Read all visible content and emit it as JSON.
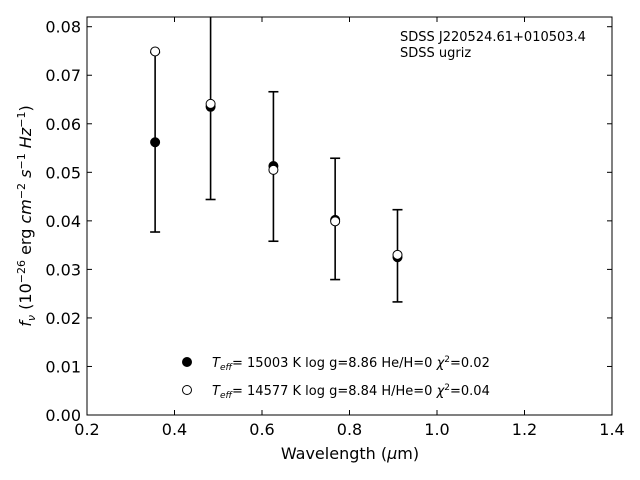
{
  "chart_data": {
    "type": "scatter",
    "xlabel": "Wavelength (μm)",
    "ylabel": "f_ν (10^-26 erg cm^-2 s^-1 Hz^-1)",
    "xlim": [
      0.2,
      1.4
    ],
    "ylim": [
      0.0,
      0.082
    ],
    "x_ticks": [
      "0.2",
      "0.4",
      "0.6",
      "0.8",
      "1.0",
      "1.2",
      "1.4"
    ],
    "y_ticks": [
      "0.00",
      "0.01",
      "0.02",
      "0.03",
      "0.04",
      "0.05",
      "0.06",
      "0.07",
      "0.08"
    ],
    "annotation": {
      "line1": "SDSS J220524.61+010503.4",
      "line2": "SDSS ugriz"
    },
    "observed": {
      "x": [
        0.3557,
        0.4825,
        0.6261,
        0.7672,
        0.9097
      ],
      "y": [
        0.0562,
        0.0635,
        0.0512,
        0.0404,
        0.0328
      ],
      "err": [
        0.0185,
        0.0191,
        0.0154,
        0.0125,
        0.0095
      ]
    },
    "series": [
      {
        "name": "Teff= 15003 K  log g=8.86  He/H=0  χ2=0.02",
        "marker": "filled",
        "x": [
          0.3557,
          0.4825,
          0.6261,
          0.7672,
          0.9097
        ],
        "y": [
          0.0562,
          0.0635,
          0.0513,
          0.0402,
          0.0325
        ]
      },
      {
        "name": "Teff= 14577 K  log g=8.84  H/He=0  χ2=0.04",
        "marker": "open",
        "x": [
          0.3557,
          0.4825,
          0.6261,
          0.7672,
          0.9097
        ],
        "y": [
          0.0749,
          0.0641,
          0.0505,
          0.0399,
          0.033
        ]
      }
    ],
    "legend": [
      {
        "teff_value": "= 15003 K  log g=8.86  He/H=0  ",
        "chi_value": "=0.02"
      },
      {
        "teff_value": "= 14577 K  log g=8.84  H/He=0  ",
        "chi_value": "=0.04"
      }
    ],
    "legend_placement": "lower-center",
    "grid": false
  }
}
